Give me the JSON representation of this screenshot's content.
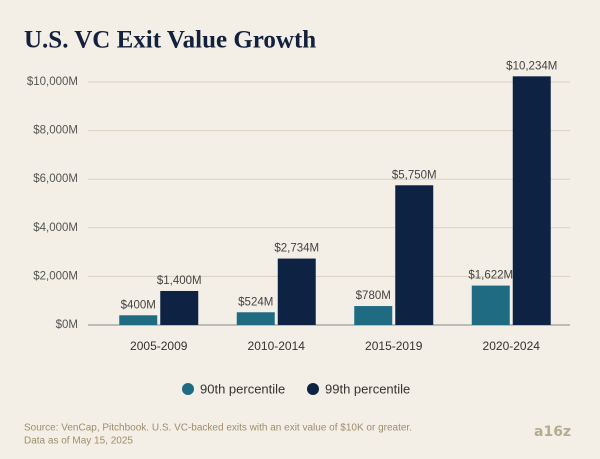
{
  "chart_data": {
    "type": "bar",
    "title": "U.S. VC Exit Value Growth",
    "categories": [
      "2005-2009",
      "2010-2014",
      "2015-2019",
      "2020-2024"
    ],
    "series": [
      {
        "name": "90th percentile",
        "color": "#1f6b82",
        "values": [
          400,
          524,
          780,
          1622
        ],
        "value_labels": [
          "$400M",
          "$524M",
          "$780M",
          "$1,622M"
        ]
      },
      {
        "name": "99th percentile",
        "color": "#0e2343",
        "values": [
          1400,
          2734,
          5750,
          10234
        ],
        "value_labels": [
          "$1,400M",
          "$2,734M",
          "$5,750M",
          "$10,234M"
        ]
      }
    ],
    "ylim": [
      0,
      10700
    ],
    "yticks": [
      {
        "value": 0,
        "label": "$0M"
      },
      {
        "value": 2000,
        "label": "$2,000M"
      },
      {
        "value": 4000,
        "label": "$4,000M"
      },
      {
        "value": 6000,
        "label": "$6,000M"
      },
      {
        "value": 8000,
        "label": "$8,000M"
      },
      {
        "value": 10000,
        "label": "$10,000M"
      }
    ],
    "grid": true,
    "legend": "bottom",
    "source": [
      "Source: VenCap, Pitchbook. U.S. VC-backed exits with an exit value of $10K or greater.",
      "Data as of May 15, 2025"
    ],
    "logo": "a16z"
  }
}
